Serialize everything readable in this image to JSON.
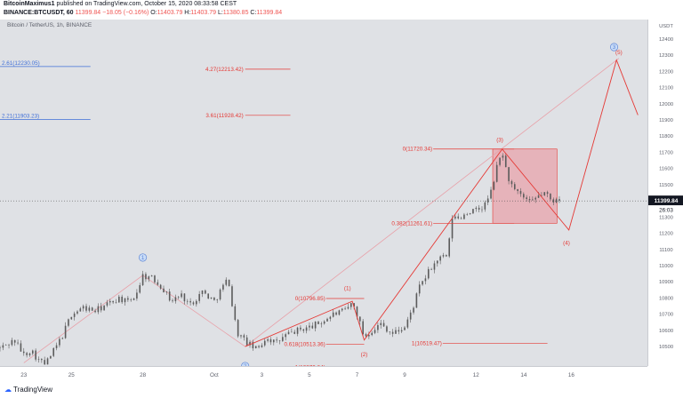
{
  "header": {
    "author": "BitcoinMaximus1",
    "published_text": "published on TradingView.com, October 15, 2020 08:33:58 CEST",
    "symbol_line": "BINANCE:BTCUSDT, 60",
    "last_price": "11399.84",
    "change": "−18.05 (−0.16%)",
    "o_label": "O:",
    "o": "11403.79",
    "h_label": "H:",
    "h": "11403.79",
    "l_label": "L:",
    "l": "11380.85",
    "c_label": "C:",
    "c": "11399.84"
  },
  "symbol_desc": "Bitcoin / TetherUS, 1h, BINANCE",
  "currency_label": "USDT",
  "footer": {
    "brand": "TradingView"
  },
  "colors": {
    "candles": "#5b5b5b",
    "fib_blue": "#3f6fd8",
    "fib_red": "#e53935",
    "wave_blue": "#5c85d6",
    "wave_red": "#e53935",
    "box_fill": "#e8a0a8",
    "box_stroke": "#e53935",
    "trend": "#e53935",
    "trend_faint": "#e8a0a8"
  },
  "chart_data": {
    "type": "candlestick",
    "title": "Bitcoin / TetherUS, 1h, BINANCE",
    "ylim": [
      10380,
      12520
    ],
    "y_ticks": [
      10400,
      10500,
      10600,
      10700,
      10800,
      10900,
      11000,
      11100,
      11200,
      11300,
      11400,
      11500,
      11600,
      11700,
      11800,
      11900,
      12000,
      12100,
      12200,
      12300,
      12400
    ],
    "x_ticks": [
      {
        "label": "23",
        "day": 23.0
      },
      {
        "label": "25",
        "day": 25.0
      },
      {
        "label": "28",
        "day": 28.0
      },
      {
        "label": "Oct",
        "day": 31.0
      },
      {
        "label": "3",
        "day": 33.0
      },
      {
        "label": "5",
        "day": 35.0
      },
      {
        "label": "7",
        "day": 37.0
      },
      {
        "label": "9",
        "day": 39.0
      },
      {
        "label": "12",
        "day": 42.0
      },
      {
        "label": "14",
        "day": 44.0
      },
      {
        "label": "16",
        "day": 46.0
      }
    ],
    "last_price_label": "11399.84",
    "countdown_label": "26:03",
    "last_price": 11399.84,
    "price_path": [
      [
        22.0,
        10490
      ],
      [
        22.6,
        10540
      ],
      [
        23.0,
        10450
      ],
      [
        23.3,
        10480
      ],
      [
        23.6,
        10420
      ],
      [
        23.9,
        10390
      ],
      [
        24.2,
        10460
      ],
      [
        24.6,
        10560
      ],
      [
        25.0,
        10700
      ],
      [
        25.5,
        10740
      ],
      [
        26.0,
        10720
      ],
      [
        26.5,
        10760
      ],
      [
        27.0,
        10800
      ],
      [
        27.4,
        10770
      ],
      [
        27.7,
        10820
      ],
      [
        28.0,
        10940
      ],
      [
        28.4,
        10920
      ],
      [
        28.8,
        10870
      ],
      [
        29.2,
        10780
      ],
      [
        29.6,
        10820
      ],
      [
        30.0,
        10760
      ],
      [
        30.5,
        10840
      ],
      [
        31.0,
        10780
      ],
      [
        31.4,
        10880
      ],
      [
        31.6,
        10920
      ],
      [
        31.8,
        10700
      ],
      [
        32.0,
        10580
      ],
      [
        32.4,
        10520
      ],
      [
        32.8,
        10480
      ],
      [
        33.2,
        10560
      ],
      [
        33.6,
        10520
      ],
      [
        34.0,
        10570
      ],
      [
        34.5,
        10600
      ],
      [
        35.0,
        10620
      ],
      [
        35.5,
        10650
      ],
      [
        36.0,
        10700
      ],
      [
        36.5,
        10720
      ],
      [
        36.8,
        10770
      ],
      [
        37.0,
        10700
      ],
      [
        37.3,
        10560
      ],
      [
        37.6,
        10600
      ],
      [
        38.0,
        10640
      ],
      [
        38.5,
        10580
      ],
      [
        39.0,
        10620
      ],
      [
        39.3,
        10720
      ],
      [
        39.6,
        10860
      ],
      [
        40.0,
        10960
      ],
      [
        40.4,
        11040
      ],
      [
        40.8,
        11060
      ],
      [
        41.0,
        11300
      ],
      [
        41.3,
        11290
      ],
      [
        41.6,
        11330
      ],
      [
        42.0,
        11340
      ],
      [
        42.3,
        11360
      ],
      [
        42.6,
        11440
      ],
      [
        42.9,
        11620
      ],
      [
        43.1,
        11710
      ],
      [
        43.3,
        11560
      ],
      [
        43.6,
        11460
      ],
      [
        44.0,
        11420
      ],
      [
        44.3,
        11380
      ],
      [
        44.6,
        11430
      ],
      [
        44.9,
        11450
      ],
      [
        45.2,
        11390
      ],
      [
        45.4,
        11430
      ],
      [
        45.6,
        11400
      ]
    ],
    "fib_levels": [
      {
        "label": "2.61(12230.05)",
        "price": 12230.05,
        "color": "blue",
        "x1": 22.0,
        "x2": 25.8
      },
      {
        "label": "2.21(11903.23)",
        "price": 11903.23,
        "color": "blue",
        "x1": 22.0,
        "x2": 25.8
      },
      {
        "label": "4.27(12213.42)",
        "price": 12213.42,
        "color": "red",
        "x1": 32.3,
        "x2": 34.2
      },
      {
        "label": "3.61(11928.42)",
        "price": 11928.42,
        "color": "red",
        "x1": 32.3,
        "x2": 34.2
      },
      {
        "label": "0(11720.34)",
        "price": 11720.34,
        "color": "red",
        "x1": 40.2,
        "x2": 43.6
      },
      {
        "label": "0.382(11261.61)",
        "price": 11261.61,
        "color": "red",
        "x1": 40.2,
        "x2": 43.6
      },
      {
        "label": "0(10796.85)",
        "price": 10796.85,
        "color": "red",
        "x1": 35.7,
        "x2": 37.3
      },
      {
        "label": "0.618(10513.36)",
        "price": 10513.36,
        "color": "red",
        "x1": 35.7,
        "x2": 37.3
      },
      {
        "label": "1(10370.64)",
        "price": 10370.64,
        "color": "red",
        "x1": 35.7,
        "x2": 37.3
      },
      {
        "label": "1(10519.47)",
        "price": 10519.47,
        "color": "red",
        "x1": 40.6,
        "x2": 45.0
      }
    ],
    "projection_box": {
      "x1": 42.7,
      "x2": 45.4,
      "y1": 11720.34,
      "y2": 11261.61
    },
    "wave_labels": [
      {
        "label": "1",
        "day": 28.0,
        "price": 11050,
        "style": "circle"
      },
      {
        "label": "2",
        "day": 32.3,
        "price": 10380,
        "style": "circle"
      },
      {
        "label": "3",
        "day": 47.8,
        "price": 12350,
        "style": "circle"
      },
      {
        "label": "(1)",
        "day": 36.6,
        "price": 10850,
        "style": "paren"
      },
      {
        "label": "(2)",
        "day": 37.3,
        "price": 10440,
        "style": "paren"
      },
      {
        "label": "(3)",
        "day": 43.0,
        "price": 11765,
        "style": "paren"
      },
      {
        "label": "(4)",
        "day": 45.8,
        "price": 11130,
        "style": "paren"
      },
      {
        "label": "(5)",
        "day": 48.0,
        "price": 12305,
        "style": "paren"
      }
    ],
    "primary_wave_path": [
      [
        23.0,
        10400
      ],
      [
        28.0,
        10940
      ],
      [
        32.3,
        10500
      ],
      [
        48.0,
        12280
      ]
    ],
    "subwave_path": [
      [
        32.3,
        10500
      ],
      [
        36.8,
        10780
      ],
      [
        37.3,
        10540
      ],
      [
        43.1,
        11720
      ],
      [
        45.9,
        11220
      ],
      [
        47.9,
        12270
      ],
      [
        48.8,
        11930
      ]
    ]
  }
}
